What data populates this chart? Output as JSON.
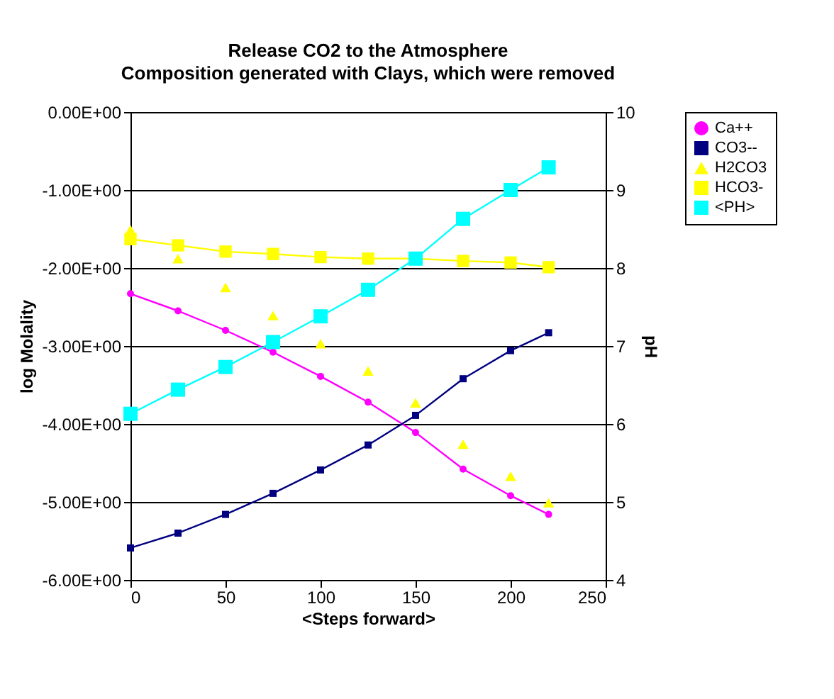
{
  "chart_data": {
    "type": "line",
    "title": "Release CO2 to the Atmosphere",
    "subtitle": "Composition generated with Clays, which were  removed",
    "xlabel": "<Steps forward>",
    "ylabel": "log Molality",
    "y2label": "pH",
    "x": [
      0,
      25,
      50,
      75,
      100,
      125,
      150,
      175,
      200,
      220
    ],
    "series": [
      {
        "name": "Ca++",
        "color": "#ff00ff",
        "marker": "circle",
        "values": [
          -2.33,
          -2.55,
          -2.8,
          -3.08,
          -3.39,
          -3.72,
          -4.11,
          -4.58,
          -4.92,
          -5.16
        ]
      },
      {
        "name": "CO3--",
        "color": "#000080",
        "marker": "square",
        "values": [
          -5.59,
          -5.4,
          -5.16,
          -4.89,
          -4.59,
          -4.27,
          -3.89,
          -3.42,
          -3.06,
          -2.83
        ]
      },
      {
        "name": "H2CO3",
        "color": "#ffff00",
        "type": "scatter",
        "marker": "triangle",
        "values": [
          -1.51,
          -1.88,
          -2.25,
          -2.61,
          -2.97,
          -3.32,
          -3.73,
          -4.26,
          -4.67,
          -5.01
        ]
      },
      {
        "name": "HCO3-",
        "color": "#ffff00",
        "marker": "square",
        "values": [
          -1.63,
          -1.71,
          -1.79,
          -1.82,
          -1.86,
          -1.88,
          -1.88,
          -1.91,
          -1.93,
          -1.99
        ]
      },
      {
        "name": "<PH>",
        "color": "#00ffff",
        "marker": "square",
        "axis": "y2",
        "values": [
          6.13,
          6.44,
          6.73,
          7.05,
          7.38,
          7.72,
          8.12,
          8.63,
          9.0,
          9.29
        ]
      }
    ],
    "xlim": [
      0,
      250
    ],
    "xticks": [
      0,
      50,
      100,
      150,
      200,
      250
    ],
    "ylim": [
      -6,
      0
    ],
    "yticks": [
      {
        "value": -6,
        "label": "-6.00E+00"
      },
      {
        "value": -5,
        "label": "-5.00E+00"
      },
      {
        "value": -4,
        "label": "-4.00E+00"
      },
      {
        "value": -3,
        "label": "-3.00E+00"
      },
      {
        "value": -2,
        "label": "-2.00E+00"
      },
      {
        "value": -1,
        "label": "-1.00E+00"
      },
      {
        "value": 0,
        "label": "0.00E+00"
      }
    ],
    "y2lim": [
      4,
      10
    ],
    "y2ticks": [
      4,
      5,
      6,
      7,
      8,
      9,
      10
    ],
    "grid": "y",
    "legend": "right"
  }
}
